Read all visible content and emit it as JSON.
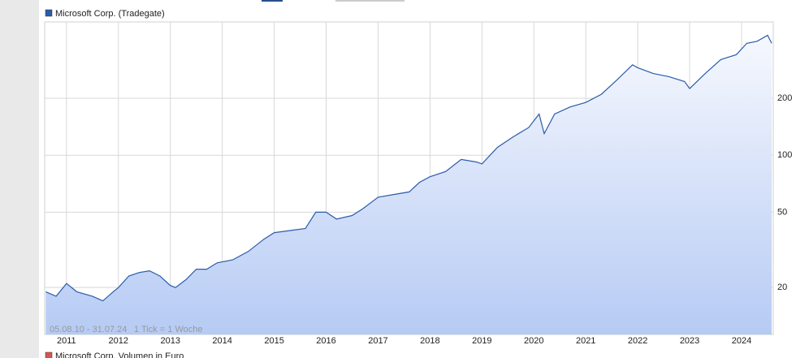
{
  "chart_data": {
    "type": "line",
    "legend": "top-left",
    "log_y": true,
    "grid": true,
    "annotations": [
      "05.08.10 - 31.07.24",
      "1 Tick = 1 Woche"
    ],
    "xlim": [
      2010.58,
      2024.61
    ],
    "xticks": [
      2011,
      2012,
      2013,
      2014,
      2015,
      2016,
      2017,
      2018,
      2019,
      2020,
      2021,
      2022,
      2023,
      2024
    ],
    "ylim": [
      11.3,
      506
    ],
    "yticks": [
      20,
      50,
      100,
      200
    ],
    "x": [
      2010.6,
      2010.8,
      2011.0,
      2011.2,
      2011.5,
      2011.7,
      2011.9,
      2012.0,
      2012.2,
      2012.4,
      2012.6,
      2012.8,
      2013.0,
      2013.1,
      2013.3,
      2013.5,
      2013.7,
      2013.9,
      2014.2,
      2014.5,
      2014.8,
      2015.0,
      2015.3,
      2015.6,
      2015.8,
      2016.0,
      2016.2,
      2016.5,
      2016.7,
      2017.0,
      2017.3,
      2017.6,
      2017.8,
      2018.0,
      2018.3,
      2018.6,
      2018.9,
      2019.0,
      2019.3,
      2019.6,
      2019.9,
      2020.1,
      2020.2,
      2020.4,
      2020.7,
      2021.0,
      2021.3,
      2021.6,
      2021.9,
      2022.0,
      2022.3,
      2022.6,
      2022.9,
      2023.0,
      2023.3,
      2023.6,
      2023.9,
      2024.1,
      2024.3,
      2024.5,
      2024.58
    ],
    "series": [
      {
        "name": "Microsoft Corp. (Tradegate)",
        "color": "#2a5caa",
        "values": [
          19,
          18,
          21,
          19,
          18,
          17,
          19,
          20,
          23,
          24,
          24.5,
          23,
          20.5,
          20,
          22,
          25,
          25,
          27,
          28,
          31,
          36,
          39,
          40,
          41,
          50,
          50,
          46,
          48,
          52,
          60,
          62,
          64,
          72,
          77,
          82,
          95,
          92,
          90,
          110,
          125,
          140,
          165,
          130,
          165,
          180,
          190,
          210,
          250,
          300,
          290,
          270,
          260,
          245,
          225,
          270,
          320,
          340,
          390,
          400,
          430,
          390
        ]
      }
    ]
  },
  "volume_legend": {
    "name": "Microsoft Corp. Volumen in Euro",
    "color": "#d9534f"
  }
}
